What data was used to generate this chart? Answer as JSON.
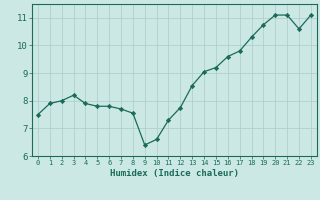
{
  "x": [
    0,
    1,
    2,
    3,
    4,
    5,
    6,
    7,
    8,
    9,
    10,
    11,
    12,
    13,
    14,
    15,
    16,
    17,
    18,
    19,
    20,
    21,
    22,
    23
  ],
  "y": [
    7.5,
    7.9,
    8.0,
    8.2,
    7.9,
    7.8,
    7.8,
    7.7,
    7.55,
    6.4,
    6.6,
    7.3,
    7.75,
    8.55,
    9.05,
    9.2,
    9.6,
    9.8,
    10.3,
    10.75,
    11.1,
    11.1,
    10.6,
    11.1
  ],
  "line_color": "#1a6b5a",
  "marker": "D",
  "marker_size": 2.2,
  "bg_color": "#cce8e4",
  "grid_color": "#aaccca",
  "xlabel": "Humidex (Indice chaleur)",
  "xlim": [
    -0.5,
    23.5
  ],
  "ylim": [
    6,
    11.5
  ],
  "yticks": [
    6,
    7,
    8,
    9,
    10,
    11
  ],
  "xticks": [
    0,
    1,
    2,
    3,
    4,
    5,
    6,
    7,
    8,
    9,
    10,
    11,
    12,
    13,
    14,
    15,
    16,
    17,
    18,
    19,
    20,
    21,
    22,
    23
  ],
  "tick_color": "#1a6b5a",
  "label_color": "#1a6b5a",
  "spine_color": "#1a6b5a",
  "xtick_fontsize": 5.0,
  "ytick_fontsize": 6.5,
  "xlabel_fontsize": 6.5
}
